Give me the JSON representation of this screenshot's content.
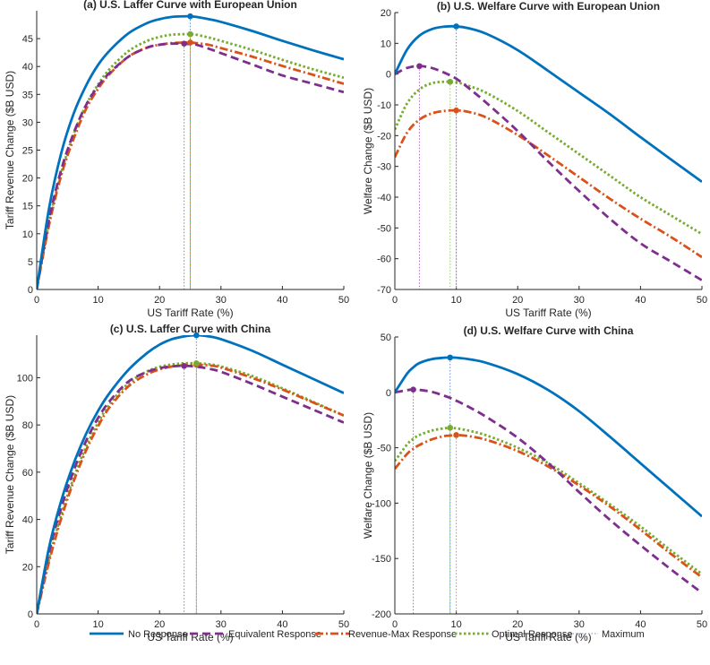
{
  "colors": {
    "no_response": "#0072BD",
    "equivalent": "#7E2F8E",
    "revenue_max": "#D95319",
    "optimal": "#77AC30",
    "axis": "#262626"
  },
  "legend": {
    "no_response": "No Response",
    "equivalent": "Equivalent Response",
    "revenue_max": "Revenue-Max Response",
    "optimal": "Optimal Response",
    "maximum": "Maximum"
  },
  "chart_data": [
    {
      "id": "a",
      "type": "line",
      "title": "(a) U.S. Laffer Curve with European Union",
      "xlabel": "US Tariff Rate (%)",
      "ylabel": "Tariff Revenue Change ($B USD)",
      "xlim": [
        0,
        50
      ],
      "ylim": [
        0,
        50
      ],
      "xticks": [
        "0",
        "10",
        "20",
        "30",
        "40",
        "50"
      ],
      "yticks": [
        "0",
        "5",
        "10",
        "15",
        "20",
        "25",
        "30",
        "35",
        "40",
        "45"
      ],
      "x": [
        0,
        2,
        4,
        6,
        8,
        10,
        12,
        15,
        18,
        20,
        22,
        24,
        25,
        26,
        28,
        30,
        35,
        40,
        45,
        50
      ],
      "series": [
        {
          "name": "No Response",
          "key": "no_response",
          "dash": "solid",
          "values": [
            0,
            14.5,
            24.5,
            31.5,
            36.5,
            40.3,
            43.0,
            46.0,
            47.8,
            48.5,
            48.9,
            49.0,
            49.0,
            48.9,
            48.5,
            48.0,
            46.4,
            44.6,
            42.9,
            41.3
          ]
        },
        {
          "name": "Equivalent Response",
          "key": "equivalent",
          "dash": "dash",
          "values": [
            0,
            12.5,
            21.5,
            28.0,
            33.0,
            36.5,
            39.0,
            41.8,
            43.4,
            43.9,
            44.1,
            44.1,
            44.0,
            43.9,
            43.2,
            42.4,
            40.4,
            38.4,
            36.9,
            35.4
          ]
        },
        {
          "name": "Revenue-Max Response",
          "key": "revenue_max",
          "dash": "dashdot",
          "values": [
            0,
            11.5,
            20.5,
            27.0,
            32.3,
            36.0,
            38.8,
            41.8,
            43.4,
            43.9,
            44.2,
            44.3,
            44.3,
            44.2,
            43.9,
            43.3,
            41.8,
            40.1,
            38.5,
            36.9
          ]
        },
        {
          "name": "Optimal Response",
          "key": "optimal",
          "dash": "dot",
          "values": [
            0,
            12.0,
            21.0,
            27.8,
            33.0,
            36.8,
            39.7,
            42.8,
            44.6,
            45.3,
            45.7,
            45.8,
            45.8,
            45.7,
            45.2,
            44.6,
            43.0,
            41.2,
            39.5,
            38.0
          ]
        }
      ],
      "maxima": [
        {
          "key": "no_response",
          "x": 25,
          "y": 49.0
        },
        {
          "key": "equivalent",
          "x": 24,
          "y": 44.1
        },
        {
          "key": "revenue_max",
          "x": 25,
          "y": 44.3
        },
        {
          "key": "optimal",
          "x": 25,
          "y": 45.8
        }
      ]
    },
    {
      "id": "b",
      "type": "line",
      "title": "(b) U.S. Welfare Curve with European Union",
      "xlabel": "US Tariff Rate (%)",
      "ylabel": "Welfare Change ($B USD)",
      "xlim": [
        0,
        50
      ],
      "ylim": [
        -70,
        20
      ],
      "xticks": [
        "0",
        "10",
        "20",
        "30",
        "40",
        "50"
      ],
      "yticks": [
        "-70",
        "-60",
        "-50",
        "-40",
        "-30",
        "-20",
        "-10",
        "0",
        "10",
        "20"
      ],
      "x": [
        0,
        2,
        4,
        6,
        8,
        10,
        12,
        15,
        20,
        25,
        30,
        35,
        40,
        45,
        50
      ],
      "series": [
        {
          "name": "No Response",
          "key": "no_response",
          "dash": "solid",
          "values": [
            0,
            8.0,
            12.5,
            14.6,
            15.4,
            15.5,
            14.9,
            13.0,
            7.8,
            1.0,
            -6.0,
            -13.0,
            -20.5,
            -27.8,
            -35.0
          ]
        },
        {
          "name": "Equivalent Response",
          "key": "equivalent",
          "dash": "dash",
          "values": [
            0,
            2.0,
            2.6,
            2.0,
            0.5,
            -1.5,
            -4.5,
            -9.5,
            -18.5,
            -28.5,
            -38.0,
            -47.0,
            -55.0,
            -61.0,
            -67.0
          ]
        },
        {
          "name": "Revenue-Max Response",
          "key": "revenue_max",
          "dash": "dashdot",
          "values": [
            -27.0,
            -19.0,
            -14.8,
            -12.8,
            -12.0,
            -11.8,
            -12.3,
            -14.2,
            -19.8,
            -26.5,
            -33.5,
            -40.5,
            -47.0,
            -53.0,
            -59.5
          ]
        },
        {
          "name": "Optimal Response",
          "key": "optimal",
          "dash": "dot",
          "values": [
            -18.0,
            -9.5,
            -5.0,
            -3.0,
            -2.5,
            -2.7,
            -3.8,
            -6.2,
            -12.0,
            -19.0,
            -26.0,
            -33.0,
            -40.0,
            -46.0,
            -52.0
          ]
        }
      ],
      "maxima": [
        {
          "key": "no_response",
          "x": 10,
          "y": 15.5
        },
        {
          "key": "equivalent",
          "x": 4,
          "y": 2.6
        },
        {
          "key": "revenue_max",
          "x": 10,
          "y": -11.8
        },
        {
          "key": "optimal",
          "x": 9,
          "y": -2.5
        }
      ]
    },
    {
      "id": "c",
      "type": "line",
      "title": "(c) U.S. Laffer Curve with China",
      "xlabel": "US Tariff Rate (%)",
      "ylabel": "Tariff Revenue Change ($B USD)",
      "xlim": [
        0,
        50
      ],
      "ylim": [
        0,
        118
      ],
      "xticks": [
        "0",
        "10",
        "20",
        "30",
        "40",
        "50"
      ],
      "yticks": [
        "0",
        "20",
        "40",
        "60",
        "80",
        "100"
      ],
      "x": [
        0,
        2,
        4,
        6,
        8,
        10,
        12,
        15,
        18,
        20,
        22,
        24,
        26,
        28,
        30,
        35,
        40,
        45,
        50
      ],
      "series": [
        {
          "name": "No Response",
          "key": "no_response",
          "dash": "solid",
          "values": [
            0,
            28.0,
            48.0,
            63.5,
            76.0,
            86.0,
            94.0,
            103.5,
            110.5,
            114.0,
            116.3,
            117.5,
            118.0,
            117.5,
            116.3,
            111.5,
            105.5,
            99.5,
            93.5
          ]
        },
        {
          "name": "Equivalent Response",
          "key": "equivalent",
          "dash": "dash",
          "values": [
            0,
            26.0,
            45.0,
            60.5,
            73.0,
            83.0,
            90.5,
            98.5,
            102.5,
            104.0,
            104.8,
            105.0,
            104.7,
            103.8,
            102.5,
            97.5,
            92.0,
            86.5,
            81.0
          ]
        },
        {
          "name": "Revenue-Max Response",
          "key": "revenue_max",
          "dash": "dashdot",
          "values": [
            0,
            22.0,
            40.5,
            56.0,
            69.0,
            79.5,
            88.0,
            96.5,
            101.5,
            103.5,
            104.7,
            105.3,
            105.5,
            105.2,
            104.3,
            100.0,
            95.0,
            89.5,
            84.0
          ]
        },
        {
          "name": "Optimal Response",
          "key": "optimal",
          "dash": "dot",
          "values": [
            0,
            23.0,
            42.0,
            57.5,
            70.5,
            81.0,
            89.3,
            97.8,
            102.7,
            104.6,
            105.6,
            106.1,
            106.1,
            105.7,
            104.8,
            100.8,
            95.5,
            89.8,
            84.0
          ]
        }
      ],
      "maxima": [
        {
          "key": "no_response",
          "x": 26,
          "y": 118.0
        },
        {
          "key": "equivalent",
          "x": 24,
          "y": 105.0
        },
        {
          "key": "revenue_max",
          "x": 26,
          "y": 105.5
        },
        {
          "key": "optimal",
          "x": 26,
          "y": 106.1
        }
      ]
    },
    {
      "id": "d",
      "type": "line",
      "title": "(d) U.S. Welfare Curve with China",
      "xlabel": "US Tariff Rate (%)",
      "ylabel": "Welfare Change ($B USD)",
      "xlim": [
        0,
        50
      ],
      "ylim": [
        -200,
        50
      ],
      "xticks": [
        "0",
        "10",
        "20",
        "30",
        "40",
        "50"
      ],
      "yticks": [
        "-200",
        "-150",
        "-100",
        "-50",
        "0",
        "50"
      ],
      "x": [
        0,
        2,
        3,
        4,
        6,
        8,
        9,
        10,
        12,
        15,
        20,
        25,
        30,
        35,
        40,
        45,
        50
      ],
      "series": [
        {
          "name": "No Response",
          "key": "no_response",
          "dash": "solid",
          "values": [
            0,
            17.0,
            22.5,
            26.5,
            30.0,
            31.3,
            31.5,
            31.3,
            30.0,
            26.5,
            16.5,
            2.0,
            -17.0,
            -40.0,
            -64.0,
            -88.0,
            -112.0
          ]
        },
        {
          "name": "Equivalent Response",
          "key": "equivalent",
          "dash": "dash",
          "values": [
            0,
            2.0,
            2.5,
            2.2,
            0.5,
            -3.0,
            -5.0,
            -7.5,
            -13.0,
            -22.5,
            -41.0,
            -64.0,
            -90.0,
            -115.0,
            -138.0,
            -160.0,
            -181.0
          ]
        },
        {
          "name": "Revenue-Max Response",
          "key": "revenue_max",
          "dash": "dashdot",
          "values": [
            -69.0,
            -55.5,
            -51.0,
            -47.5,
            -42.5,
            -39.5,
            -39.0,
            -38.5,
            -39.5,
            -43.0,
            -53.0,
            -67.0,
            -84.0,
            -103.0,
            -124.0,
            -146.0,
            -167.0
          ]
        },
        {
          "name": "Optimal Response",
          "key": "optimal",
          "dash": "dot",
          "values": [
            -62.0,
            -47.0,
            -42.0,
            -38.5,
            -34.5,
            -32.5,
            -32.0,
            -32.5,
            -34.5,
            -39.0,
            -50.0,
            -64.0,
            -82.0,
            -101.0,
            -121.0,
            -143.0,
            -164.0
          ]
        }
      ],
      "maxima": [
        {
          "key": "no_response",
          "x": 9,
          "y": 31.5
        },
        {
          "key": "equivalent",
          "x": 3,
          "y": 2.5
        },
        {
          "key": "revenue_max",
          "x": 10,
          "y": -38.5
        },
        {
          "key": "optimal",
          "x": 9,
          "y": -32.0
        }
      ]
    }
  ]
}
